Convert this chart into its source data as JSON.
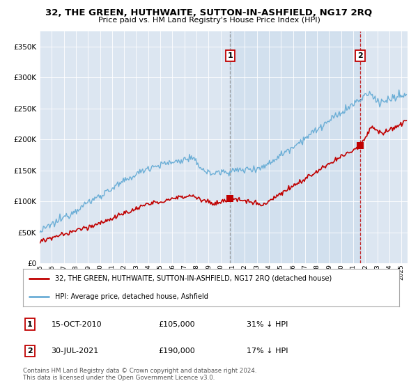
{
  "title": "32, THE GREEN, HUTHWAITE, SUTTON-IN-ASHFIELD, NG17 2RQ",
  "subtitle": "Price paid vs. HM Land Registry's House Price Index (HPI)",
  "legend_line1": "32, THE GREEN, HUTHWAITE, SUTTON-IN-ASHFIELD, NG17 2RQ (detached house)",
  "legend_line2": "HPI: Average price, detached house, Ashfield",
  "sale1_date": "15-OCT-2010",
  "sale1_price": "£105,000",
  "sale1_hpi": "31% ↓ HPI",
  "sale2_date": "30-JUL-2021",
  "sale2_price": "£190,000",
  "sale2_hpi": "17% ↓ HPI",
  "footer": "Contains HM Land Registry data © Crown copyright and database right 2024.\nThis data is licensed under the Open Government Licence v3.0.",
  "hpi_color": "#6baed6",
  "price_color": "#c00000",
  "background_plot": "#dce6f1",
  "background_fig": "#ffffff",
  "ylim": [
    0,
    375000
  ],
  "yticks": [
    0,
    50000,
    100000,
    150000,
    200000,
    250000,
    300000,
    350000
  ],
  "xlim_start": 1995.0,
  "xlim_end": 2025.5,
  "sale1_x": 2010.79,
  "sale1_y": 105000,
  "sale2_x": 2021.58,
  "sale2_y": 190000
}
